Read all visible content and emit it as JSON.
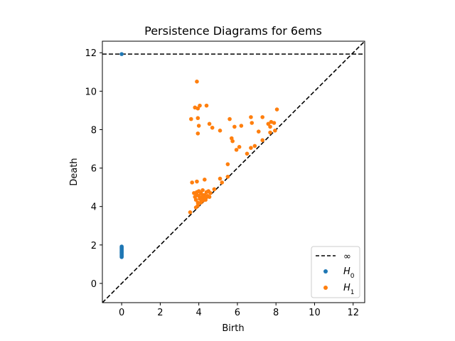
{
  "chart_data": {
    "type": "scatter",
    "title": "Persistence Diagrams for 6ems",
    "xlabel": "Birth",
    "ylabel": "Death",
    "xlim": [
      -1.0,
      12.6
    ],
    "ylim": [
      -1.0,
      12.6
    ],
    "x_ticks": [
      "0",
      "2",
      "4",
      "6",
      "8",
      "10",
      "12"
    ],
    "y_ticks": [
      "0",
      "2",
      "4",
      "6",
      "8",
      "10",
      "12"
    ],
    "grid": false,
    "legend_position": "lower-right",
    "infinity_line": {
      "label": "∞",
      "y": 11.93,
      "style": "dashed",
      "color": "#000000"
    },
    "diagonal_line": {
      "style": "dashed",
      "color": "#000000"
    },
    "series": [
      {
        "name": "H0",
        "color": "#1f77b4",
        "points": [
          [
            0,
            11.93
          ],
          [
            0,
            1.92
          ],
          [
            0,
            1.88
          ],
          [
            0,
            1.84
          ],
          [
            0,
            1.8
          ],
          [
            0,
            1.76
          ],
          [
            0,
            1.72
          ],
          [
            0,
            1.68
          ],
          [
            0,
            1.64
          ],
          [
            0,
            1.6
          ],
          [
            0,
            1.56
          ],
          [
            0,
            1.52
          ],
          [
            0,
            1.48
          ],
          [
            0,
            1.44
          ],
          [
            0,
            1.4
          ],
          [
            0,
            1.37
          ]
        ]
      },
      {
        "name": "H1",
        "color": "#ff7f0e",
        "points": [
          [
            3.9,
            10.5
          ],
          [
            3.8,
            9.15
          ],
          [
            3.95,
            9.1
          ],
          [
            4.05,
            9.25
          ],
          [
            4.4,
            9.25
          ],
          [
            3.6,
            8.55
          ],
          [
            3.95,
            8.6
          ],
          [
            4.0,
            8.2
          ],
          [
            3.95,
            7.8
          ],
          [
            4.55,
            8.3
          ],
          [
            4.7,
            8.1
          ],
          [
            5.1,
            7.95
          ],
          [
            5.6,
            8.55
          ],
          [
            5.85,
            8.15
          ],
          [
            6.2,
            8.2
          ],
          [
            6.7,
            8.65
          ],
          [
            6.75,
            8.35
          ],
          [
            7.3,
            8.65
          ],
          [
            7.6,
            8.3
          ],
          [
            7.7,
            8.15
          ],
          [
            7.75,
            8.4
          ],
          [
            7.9,
            8.35
          ],
          [
            7.7,
            7.85
          ],
          [
            7.95,
            7.95
          ],
          [
            8.05,
            9.05
          ],
          [
            5.7,
            7.55
          ],
          [
            5.75,
            7.4
          ],
          [
            6.1,
            7.1
          ],
          [
            5.95,
            6.95
          ],
          [
            6.5,
            6.75
          ],
          [
            6.7,
            7.05
          ],
          [
            6.9,
            7.15
          ],
          [
            7.1,
            7.9
          ],
          [
            7.3,
            7.45
          ],
          [
            5.5,
            6.2
          ],
          [
            5.5,
            5.55
          ],
          [
            5.1,
            5.45
          ],
          [
            5.2,
            5.25
          ],
          [
            4.8,
            4.9
          ],
          [
            4.3,
            5.4
          ],
          [
            3.65,
            5.25
          ],
          [
            3.9,
            5.3
          ],
          [
            3.75,
            4.7
          ],
          [
            3.8,
            4.5
          ],
          [
            3.9,
            4.6
          ],
          [
            3.9,
            4.75
          ],
          [
            4.0,
            4.8
          ],
          [
            4.1,
            4.7
          ],
          [
            4.2,
            4.85
          ],
          [
            4.3,
            4.6
          ],
          [
            4.4,
            4.75
          ],
          [
            4.5,
            4.8
          ],
          [
            4.6,
            4.7
          ],
          [
            3.85,
            4.35
          ],
          [
            3.95,
            4.2
          ],
          [
            4.05,
            4.4
          ],
          [
            4.15,
            4.3
          ],
          [
            4.25,
            4.45
          ],
          [
            4.35,
            4.35
          ],
          [
            4.45,
            4.55
          ],
          [
            4.55,
            4.5
          ],
          [
            4.0,
            4.55
          ],
          [
            4.1,
            4.45
          ],
          [
            4.2,
            4.6
          ],
          [
            3.95,
            4.05
          ],
          [
            3.85,
            3.95
          ],
          [
            3.55,
            3.7
          ],
          [
            4.1,
            4.2
          ],
          [
            4.2,
            4.3
          ],
          [
            4.4,
            4.5
          ]
        ]
      }
    ]
  }
}
